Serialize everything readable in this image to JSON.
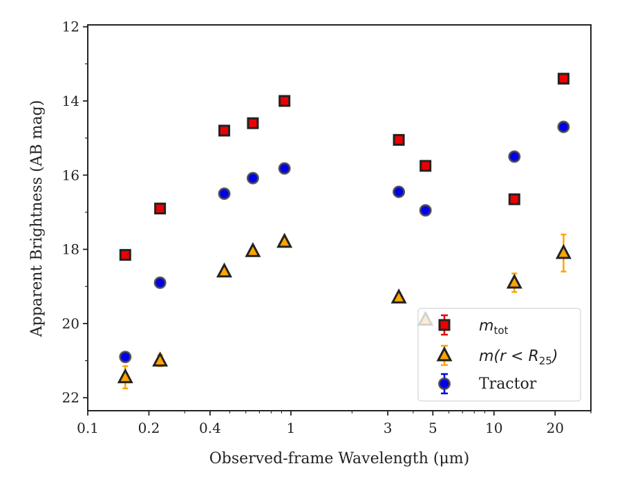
{
  "chart_data": {
    "type": "scatter",
    "xlabel": "Observed-frame Wavelength (μm)",
    "ylabel": "Apparent Brightness (AB mag)",
    "xscale": "log",
    "xlim": [
      0.1,
      30
    ],
    "ylim": [
      22.35,
      11.95
    ],
    "y_inverted": true,
    "x_ticks": [
      {
        "value": 0.1,
        "label": "0.1"
      },
      {
        "value": 0.2,
        "label": "0.2"
      },
      {
        "value": 0.4,
        "label": "0.4"
      },
      {
        "value": 1,
        "label": "1"
      },
      {
        "value": 3,
        "label": "3"
      },
      {
        "value": 5,
        "label": "5"
      },
      {
        "value": 10,
        "label": "10"
      },
      {
        "value": 20,
        "label": "20"
      }
    ],
    "y_ticks": [
      {
        "value": 12,
        "label": "12"
      },
      {
        "value": 14,
        "label": "14"
      },
      {
        "value": 16,
        "label": "16"
      },
      {
        "value": 18,
        "label": "18"
      },
      {
        "value": 20,
        "label": "20"
      },
      {
        "value": 22,
        "label": "22"
      }
    ],
    "grid": false,
    "legend_position": "lower-right",
    "series": [
      {
        "name": "m_tot",
        "marker": "square",
        "color": "#ee0000",
        "points": [
          {
            "x": 0.153,
            "y": 18.15,
            "err": 0.03
          },
          {
            "x": 0.227,
            "y": 16.9,
            "err": 0.03
          },
          {
            "x": 0.47,
            "y": 14.8,
            "err": 0.03
          },
          {
            "x": 0.65,
            "y": 14.6,
            "err": 0.03
          },
          {
            "x": 0.93,
            "y": 14.0,
            "err": 0.03
          },
          {
            "x": 3.4,
            "y": 15.05,
            "err": 0.03
          },
          {
            "x": 4.6,
            "y": 15.75,
            "err": 0.03
          },
          {
            "x": 12.6,
            "y": 16.65,
            "err": 0.03
          },
          {
            "x": 22.0,
            "y": 13.4,
            "err": 0.03
          }
        ]
      },
      {
        "name": "m(r<R_25)",
        "marker": "triangle",
        "color": "#ffa500",
        "points": [
          {
            "x": 0.153,
            "y": 21.45,
            "err": 0.3
          },
          {
            "x": 0.227,
            "y": 21.0,
            "err": 0.15
          },
          {
            "x": 0.47,
            "y": 18.6,
            "err": 0.05
          },
          {
            "x": 0.65,
            "y": 18.05,
            "err": 0.05
          },
          {
            "x": 0.93,
            "y": 17.8,
            "err": 0.05
          },
          {
            "x": 3.4,
            "y": 19.3,
            "err": 0.05
          },
          {
            "x": 4.6,
            "y": 19.9,
            "err": 0.05
          },
          {
            "x": 12.6,
            "y": 18.9,
            "err": 0.25
          },
          {
            "x": 22.0,
            "y": 18.1,
            "err": 0.5
          }
        ]
      },
      {
        "name": "Tractor",
        "marker": "circle",
        "color": "#0000ee",
        "points": [
          {
            "x": 0.153,
            "y": 20.9,
            "err": 0.08
          },
          {
            "x": 0.227,
            "y": 18.9,
            "err": 0.08
          },
          {
            "x": 0.47,
            "y": 16.5,
            "err": 0.08
          },
          {
            "x": 0.65,
            "y": 16.08,
            "err": 0.08
          },
          {
            "x": 0.93,
            "y": 15.82,
            "err": 0.08
          },
          {
            "x": 3.4,
            "y": 16.45,
            "err": 0.08
          },
          {
            "x": 4.6,
            "y": 16.95,
            "err": 0.08
          },
          {
            "x": 12.6,
            "y": 15.5,
            "err": 0.08
          },
          {
            "x": 22.0,
            "y": 14.7,
            "err": 0.08
          }
        ]
      }
    ],
    "legend": {
      "mtot_base": "m",
      "mtot_sub": "tot",
      "mr_base": "m(r < R",
      "mr_sub": "25",
      "mr_close": ")",
      "tractor": "Tractor"
    }
  }
}
